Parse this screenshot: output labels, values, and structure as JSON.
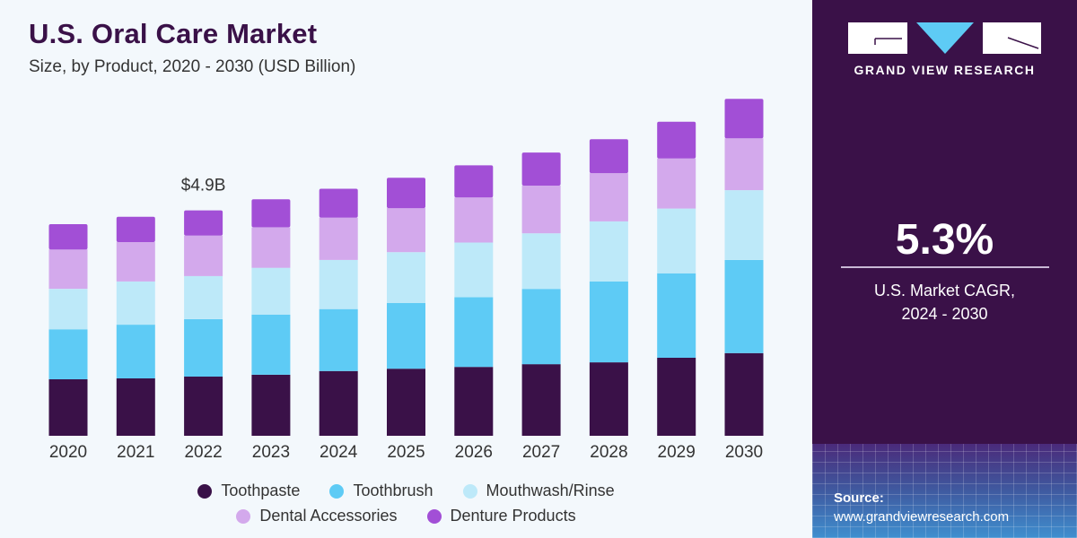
{
  "header": {
    "title": "U.S. Oral Care Market",
    "subtitle": "Size, by Product, 2020 - 2030 (USD Billion)"
  },
  "sidebar": {
    "brand": "GRAND VIEW RESEARCH",
    "cagr_value": "5.3%",
    "cagr_label_line1": "U.S. Market CAGR,",
    "cagr_label_line2": "2024 - 2030",
    "source_label": "Source:",
    "source_url": "www.grandviewresearch.com"
  },
  "chart_data": {
    "type": "bar",
    "stacked": true,
    "title": "U.S. Oral Care Market",
    "subtitle": "Size, by Product, 2020 - 2030 (USD Billion)",
    "xlabel": "",
    "ylabel": "USD Billion",
    "categories": [
      "2020",
      "2021",
      "2022",
      "2023",
      "2024",
      "2025",
      "2026",
      "2027",
      "2028",
      "2029",
      "2030"
    ],
    "series": [
      {
        "name": "Toothpaste",
        "color": "#3a1148",
        "values": [
          1.23,
          1.25,
          1.29,
          1.33,
          1.41,
          1.46,
          1.5,
          1.56,
          1.6,
          1.7,
          1.8
        ]
      },
      {
        "name": "Toothbrush",
        "color": "#5ecbf5",
        "values": [
          1.09,
          1.17,
          1.25,
          1.31,
          1.35,
          1.43,
          1.52,
          1.64,
          1.76,
          1.84,
          2.03
        ]
      },
      {
        "name": "Mouthwash/Rinse",
        "color": "#bde9f9",
        "values": [
          0.88,
          0.94,
          0.94,
          1.02,
          1.07,
          1.11,
          1.19,
          1.21,
          1.31,
          1.41,
          1.52
        ]
      },
      {
        "name": "Dental Accessories",
        "color": "#d3a9ec",
        "values": [
          0.86,
          0.86,
          0.88,
          0.88,
          0.92,
          0.96,
          0.98,
          1.04,
          1.05,
          1.09,
          1.13
        ]
      },
      {
        "name": "Denture Products",
        "color": "#a24fd6",
        "values": [
          0.55,
          0.55,
          0.55,
          0.61,
          0.63,
          0.66,
          0.7,
          0.72,
          0.74,
          0.8,
          0.86
        ]
      }
    ],
    "annotations": [
      {
        "category": "2022",
        "text": "$4.9B"
      }
    ],
    "ylim": [
      0,
      7.5
    ],
    "grid": false,
    "legend": "bottom-center"
  },
  "legend": [
    {
      "label": "Toothpaste",
      "color": "#3a1148"
    },
    {
      "label": "Toothbrush",
      "color": "#5ecbf5"
    },
    {
      "label": "Mouthwash/Rinse",
      "color": "#bde9f9"
    },
    {
      "label": "Dental Accessories",
      "color": "#d3a9ec"
    },
    {
      "label": "Denture Products",
      "color": "#a24fd6"
    }
  ]
}
